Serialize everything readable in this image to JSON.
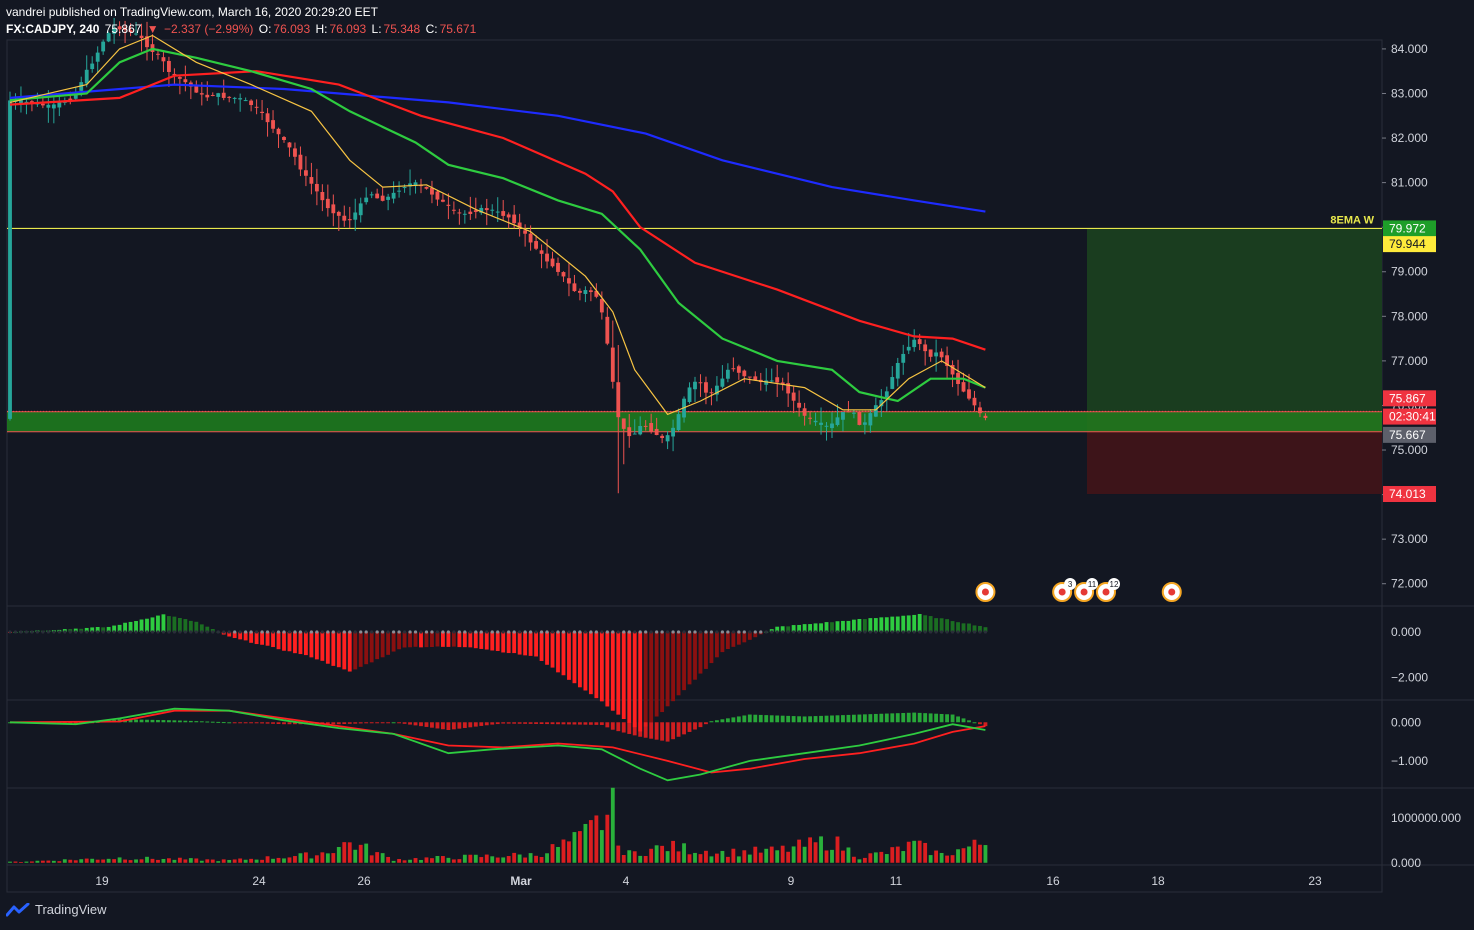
{
  "header": {
    "publisher_line": "vandrei published on TradingView.com, March 16, 2020 20:29:20 EET",
    "symbol": "FX:CADJPY, 240",
    "last": "75.867",
    "change": "−2.337 (−2.99%)",
    "ohlc": [
      {
        "label": "O:",
        "value": "76.093"
      },
      {
        "label": "H:",
        "value": "76.093"
      },
      {
        "label": "L:",
        "value": "75.348"
      },
      {
        "label": "C:",
        "value": "75.671"
      }
    ]
  },
  "footer": {
    "brand": "TradingView",
    "logo_icon": "tradingview-logo-icon"
  },
  "colors": {
    "background": "#131722",
    "up": "#26a69a",
    "down": "#ef5350",
    "ema_fast": "#f7c443",
    "ema_mid": "#2ecc40",
    "ema_slow": "#ff2020",
    "ema_long": "#1e2bff",
    "hline": "#e8e84c",
    "target_zone": "#1a3d1f",
    "stop_zone": "#3d1419",
    "green_band": "#1e7a1e"
  },
  "chart_data": {
    "type": "candlestick",
    "symbol": "FX:CADJPY",
    "timeframe": "240",
    "price_axis": {
      "ticks": [
        "84.000",
        "83.000",
        "82.000",
        "81.000",
        "80.000",
        "79.000",
        "78.000",
        "77.000",
        "76.000",
        "75.000",
        "74.000",
        "73.000",
        "72.000"
      ],
      "range": [
        71.5,
        84.2
      ]
    },
    "time_axis": {
      "ticks": [
        "19",
        "24",
        "26",
        "Mar",
        "4",
        "9",
        "11",
        "16",
        "18",
        "23"
      ]
    },
    "price_path": [
      [
        0,
        82.85
      ],
      [
        4,
        82.8
      ],
      [
        8,
        82.7
      ],
      [
        12,
        82.9
      ],
      [
        14,
        83.4
      ],
      [
        16,
        83.8
      ],
      [
        18,
        84.3
      ],
      [
        20,
        84.5
      ],
      [
        24,
        84.3
      ],
      [
        26,
        84.0
      ],
      [
        28,
        83.8
      ],
      [
        30,
        83.4
      ],
      [
        32,
        83.3
      ],
      [
        34,
        83.1
      ],
      [
        36,
        82.9
      ],
      [
        38,
        83.0
      ],
      [
        40,
        82.9
      ],
      [
        42,
        82.9
      ],
      [
        44,
        82.8
      ],
      [
        46,
        82.6
      ],
      [
        48,
        82.3
      ],
      [
        50,
        82.0
      ],
      [
        52,
        81.7
      ],
      [
        54,
        81.2
      ],
      [
        56,
        80.9
      ],
      [
        58,
        80.5
      ],
      [
        60,
        80.3
      ],
      [
        62,
        80.1
      ],
      [
        64,
        80.4
      ],
      [
        66,
        80.8
      ],
      [
        68,
        80.6
      ],
      [
        70,
        80.7
      ],
      [
        72,
        80.9
      ],
      [
        74,
        81.0
      ],
      [
        76,
        80.9
      ],
      [
        78,
        80.7
      ],
      [
        80,
        80.5
      ],
      [
        82,
        80.3
      ],
      [
        84,
        80.3
      ],
      [
        86,
        80.4
      ],
      [
        88,
        80.4
      ],
      [
        90,
        80.3
      ],
      [
        92,
        80.2
      ],
      [
        94,
        79.9
      ],
      [
        96,
        79.6
      ],
      [
        98,
        79.3
      ],
      [
        100,
        79.1
      ],
      [
        102,
        78.8
      ],
      [
        104,
        78.5
      ],
      [
        106,
        78.6
      ],
      [
        108,
        78.4
      ],
      [
        110,
        77.0
      ],
      [
        111,
        76.0
      ],
      [
        112,
        75.5
      ],
      [
        114,
        75.3
      ],
      [
        116,
        75.6
      ],
      [
        118,
        75.4
      ],
      [
        120,
        75.2
      ],
      [
        122,
        75.6
      ],
      [
        124,
        76.3
      ],
      [
        126,
        76.6
      ],
      [
        128,
        76.2
      ],
      [
        130,
        76.5
      ],
      [
        132,
        76.9
      ],
      [
        134,
        76.7
      ],
      [
        136,
        76.6
      ],
      [
        138,
        76.5
      ],
      [
        140,
        76.6
      ],
      [
        142,
        76.4
      ],
      [
        144,
        76.0
      ],
      [
        146,
        75.7
      ],
      [
        148,
        75.6
      ],
      [
        150,
        75.5
      ],
      [
        152,
        75.8
      ],
      [
        154,
        75.9
      ],
      [
        156,
        75.5
      ],
      [
        158,
        75.9
      ],
      [
        160,
        76.2
      ],
      [
        162,
        76.8
      ],
      [
        164,
        77.3
      ],
      [
        166,
        77.5
      ],
      [
        168,
        77.1
      ],
      [
        170,
        77.2
      ],
      [
        172,
        76.8
      ],
      [
        174,
        76.4
      ],
      [
        176,
        76.1
      ],
      [
        178,
        75.7
      ]
    ],
    "emas": [
      {
        "color_key": "ema_long",
        "points": [
          [
            0,
            82.9
          ],
          [
            30,
            83.2
          ],
          [
            50,
            83.1
          ],
          [
            80,
            82.8
          ],
          [
            100,
            82.5
          ],
          [
            116,
            82.1
          ],
          [
            130,
            81.5
          ],
          [
            150,
            80.9
          ],
          [
            165,
            80.6
          ],
          [
            178,
            80.35
          ]
        ]
      },
      {
        "color_key": "ema_slow",
        "points": [
          [
            0,
            82.75
          ],
          [
            20,
            82.9
          ],
          [
            30,
            83.4
          ],
          [
            45,
            83.5
          ],
          [
            60,
            83.2
          ],
          [
            75,
            82.5
          ],
          [
            90,
            82.0
          ],
          [
            105,
            81.2
          ],
          [
            110,
            80.8
          ],
          [
            115,
            80.0
          ],
          [
            125,
            79.2
          ],
          [
            140,
            78.6
          ],
          [
            155,
            77.9
          ],
          [
            165,
            77.55
          ],
          [
            172,
            77.5
          ],
          [
            178,
            77.25
          ]
        ]
      },
      {
        "color_key": "ema_mid",
        "points": [
          [
            0,
            82.85
          ],
          [
            14,
            83.0
          ],
          [
            20,
            83.7
          ],
          [
            26,
            84.0
          ],
          [
            34,
            83.8
          ],
          [
            44,
            83.5
          ],
          [
            55,
            83.1
          ],
          [
            62,
            82.6
          ],
          [
            74,
            81.9
          ],
          [
            80,
            81.4
          ],
          [
            90,
            81.1
          ],
          [
            100,
            80.6
          ],
          [
            108,
            80.3
          ],
          [
            115,
            79.5
          ],
          [
            122,
            78.3
          ],
          [
            130,
            77.5
          ],
          [
            140,
            77.0
          ],
          [
            150,
            76.8
          ],
          [
            155,
            76.3
          ],
          [
            162,
            76.1
          ],
          [
            168,
            76.6
          ],
          [
            174,
            76.6
          ],
          [
            178,
            76.4
          ]
        ]
      },
      {
        "color_key": "ema_fast",
        "points": [
          [
            0,
            82.8
          ],
          [
            14,
            83.2
          ],
          [
            20,
            84.0
          ],
          [
            26,
            84.3
          ],
          [
            34,
            83.7
          ],
          [
            44,
            83.2
          ],
          [
            55,
            82.6
          ],
          [
            62,
            81.5
          ],
          [
            68,
            80.9
          ],
          [
            76,
            80.95
          ],
          [
            85,
            80.4
          ],
          [
            95,
            79.9
          ],
          [
            105,
            78.9
          ],
          [
            110,
            78.1
          ],
          [
            114,
            76.8
          ],
          [
            120,
            75.8
          ],
          [
            126,
            76.1
          ],
          [
            134,
            76.6
          ],
          [
            145,
            76.4
          ],
          [
            152,
            75.9
          ],
          [
            158,
            75.9
          ],
          [
            164,
            76.6
          ],
          [
            170,
            77.0
          ],
          [
            178,
            76.4
          ]
        ]
      }
    ],
    "horizontal_line": {
      "price": 79.972,
      "label": "8EMA W"
    },
    "position_tool": {
      "entry": 75.867,
      "target": 79.972,
      "stop": 74.013
    },
    "support_band": {
      "from": 75.41,
      "to": 75.86
    },
    "price_labels": [
      {
        "text": "79.972",
        "price": 79.972,
        "color_key": "green"
      },
      {
        "text": "79.944",
        "price": 79.62,
        "color_key": "yellow"
      },
      {
        "text": "75.867",
        "price": 76.16,
        "color_key": "red"
      },
      {
        "text": "02:30:41",
        "price": 75.75,
        "color_key": "red"
      },
      {
        "text": "75.667",
        "price": 75.34,
        "color_key": "gray"
      },
      {
        "text": "74.013",
        "price": 74.013,
        "color_key": "red"
      }
    ],
    "event_markers": [
      {
        "time": 178,
        "count": ""
      },
      {
        "time": 192,
        "count": "3"
      },
      {
        "time": 196,
        "count": "11"
      },
      {
        "time": 200,
        "count": "12"
      },
      {
        "time": 212,
        "count": ""
      }
    ],
    "indicators": [
      {
        "name": "momentum_histogram",
        "ticks": [
          "0.000",
          "−2.000"
        ],
        "range": [
          -3.0,
          1.1
        ]
      },
      {
        "name": "macd",
        "ticks": [
          "0.000",
          "−1.000"
        ],
        "range": [
          -1.7,
          0.55
        ]
      },
      {
        "name": "volume",
        "ticks": [
          "1000000.000",
          "0.000"
        ],
        "range": [
          -50000,
          1650000
        ]
      }
    ]
  }
}
